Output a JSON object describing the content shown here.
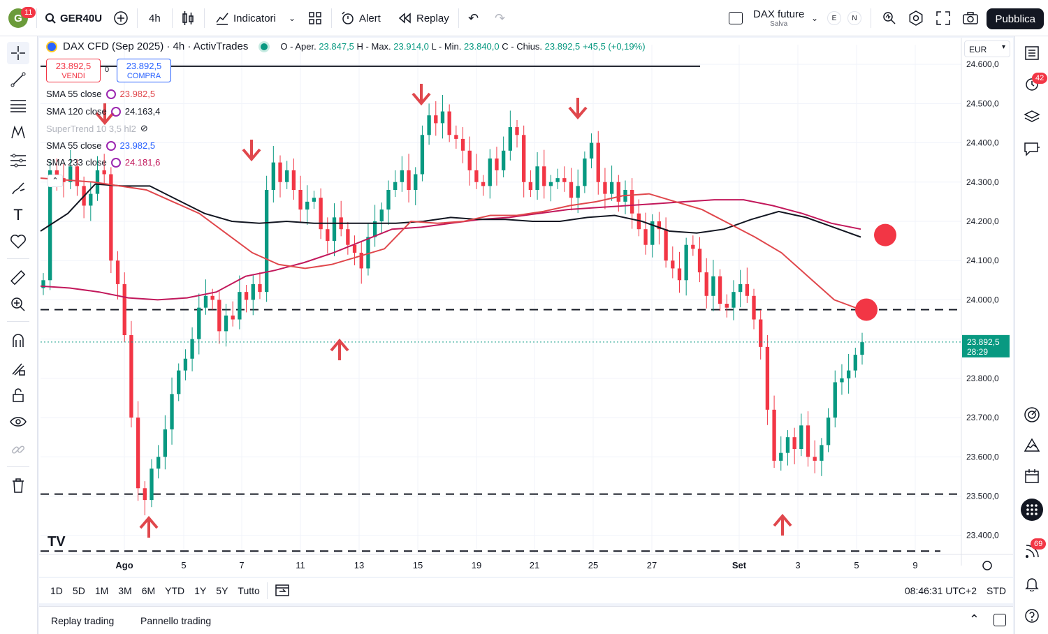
{
  "topbar": {
    "avatar_letter": "G",
    "avatar_badge": "11",
    "symbol": "GER40U",
    "interval": "4h",
    "indicators_label": "Indicatori",
    "alert_label": "Alert",
    "replay_label": "Replay",
    "layout_name": "DAX future",
    "layout_status": "Salva",
    "pill_e": "E",
    "pill_n": "N",
    "publish_label": "Pubblica"
  },
  "legend": {
    "title": "DAX CFD (Sep 2025) · 4h · ActivTrades",
    "o_label": "O - Aper.",
    "o_value": "23.847,5",
    "h_label": "H - Max.",
    "h_value": "23.914,0",
    "l_label": "L - Min.",
    "l_value": "23.840,0",
    "c_label": "C - Chius.",
    "c_value": "23.892,5",
    "change": "+45,5 (+0,19%)"
  },
  "trade": {
    "sell_price": "23.892,5",
    "sell_label": "VENDI",
    "spread": "0",
    "buy_price": "23.892,5",
    "buy_label": "COMPRA"
  },
  "indicators": [
    {
      "name": "SMA 55 close",
      "value": "23.982,5",
      "color": "#e0474c"
    },
    {
      "name": "SMA 120 close",
      "value": "24.163,4",
      "color": "#131722"
    },
    {
      "name": "SuperTrend 10 3,5 hl2",
      "value": "",
      "color": "#b2b5be"
    },
    {
      "name": "SMA 55 close",
      "value": "23.982,5",
      "color": "#2962ff"
    },
    {
      "name": "SMA 233 close",
      "value": "24.181,6",
      "color": "#c2185b"
    }
  ],
  "currency": "EUR",
  "chart_data": {
    "type": "candlestick",
    "y_ticks": [
      "24.600,0",
      "24.500,0",
      "24.400,0",
      "24.300,0",
      "24.200,0",
      "24.100,0",
      "24.000,0",
      "23.900,0",
      "23.800,0",
      "23.700,0",
      "23.600,0",
      "23.500,0",
      "23.400,0"
    ],
    "y_tick_values": [
      24600,
      24500,
      24400,
      24300,
      24200,
      24100,
      24000,
      23900,
      23800,
      23700,
      23600,
      23500,
      23400
    ],
    "ylim": [
      23355,
      24650
    ],
    "x_ticks": [
      "Ago",
      "5",
      "7",
      "11",
      "13",
      "15",
      "19",
      "21",
      "25",
      "27",
      "Set",
      "3",
      "5",
      "9"
    ],
    "last_price": "23.892,5",
    "countdown": "28:29",
    "horizontal_levels": [
      {
        "price": 24595,
        "style": "solid"
      },
      {
        "price": 23975,
        "style": "dashed"
      },
      {
        "price": 23505,
        "style": "dashed"
      },
      {
        "price": 23360,
        "style": "dashed"
      }
    ],
    "closes": [
      24050,
      24330,
      24310,
      24300,
      24340,
      24290,
      24240,
      24270,
      24330,
      24320,
      24100,
      24040,
      23910,
      23700,
      23520,
      23490,
      23570,
      23600,
      23670,
      23760,
      23820,
      23850,
      23900,
      23980,
      24010,
      24000,
      23920,
      23960,
      23950,
      24020,
      24000,
      24040,
      24020,
      24280,
      24350,
      24300,
      24330,
      24280,
      24230,
      24250,
      24260,
      24180,
      24150,
      24210,
      24180,
      24140,
      24120,
      24080,
      24160,
      24200,
      24230,
      24280,
      24300,
      24330,
      24280,
      24320,
      24420,
      24470,
      24450,
      24480,
      24420,
      24410,
      24380,
      24330,
      24300,
      24290,
      24360,
      24330,
      24380,
      24440,
      24420,
      24300,
      24280,
      24340,
      24290,
      24300,
      24310,
      24300,
      24260,
      24290,
      24360,
      24400,
      24300,
      24270,
      24300,
      24250,
      24280,
      24220,
      24180,
      24140,
      24200,
      24180,
      24100,
      24080,
      24050,
      24140,
      24130,
      24070,
      24010,
      24060,
      23990,
      23980,
      24020,
      24040,
      24010,
      23950,
      23880,
      23720,
      23590,
      23610,
      23650,
      23620,
      23680,
      23600,
      23590,
      23630,
      23700,
      23790,
      23800,
      23820,
      23860,
      23892
    ],
    "sma55": [
      24310,
      24305,
      24300,
      24290,
      24280,
      24250,
      24220,
      24170,
      24120,
      24090,
      24080,
      24090,
      24110,
      24130,
      24200,
      24195,
      24200,
      24215,
      24215,
      24225,
      24240,
      24250,
      24265,
      24270,
      24250,
      24230,
      24195,
      24160,
      24120,
      24060,
      24000,
      23975
    ],
    "sma120": [
      24175,
      24220,
      24295,
      24290,
      24290,
      24255,
      24220,
      24200,
      24195,
      24200,
      24195,
      24195,
      24195,
      24195,
      24200,
      24210,
      24205,
      24205,
      24200,
      24200,
      24210,
      24215,
      24200,
      24175,
      24170,
      24180,
      24205,
      24225,
      24210,
      24185,
      24160
    ],
    "sma233": [
      24035,
      24030,
      24020,
      24005,
      24000,
      24005,
      24020,
      24060,
      24075,
      24095,
      24120,
      24150,
      24180,
      24185,
      24195,
      24205,
      24210,
      24220,
      24230,
      24235,
      24240,
      24245,
      24250,
      24255,
      24255,
      24240,
      24220,
      24195,
      24180
    ],
    "arrows_down": [
      "",
      "7",
      "15",
      "21"
    ],
    "arrows_up": [
      "Ago",
      "13",
      "3"
    ]
  },
  "timerange": {
    "buttons": [
      "1D",
      "5D",
      "1M",
      "3M",
      "6M",
      "YTD",
      "1Y",
      "5Y",
      "Tutto"
    ],
    "clock": "08:46:31 UTC+2",
    "std": "STD"
  },
  "footer": {
    "replay_trading": "Replay trading",
    "trading_panel": "Pannello trading"
  },
  "rightbar": {
    "notif_badge": "42",
    "feed_badge": "69"
  },
  "logo": "TV"
}
